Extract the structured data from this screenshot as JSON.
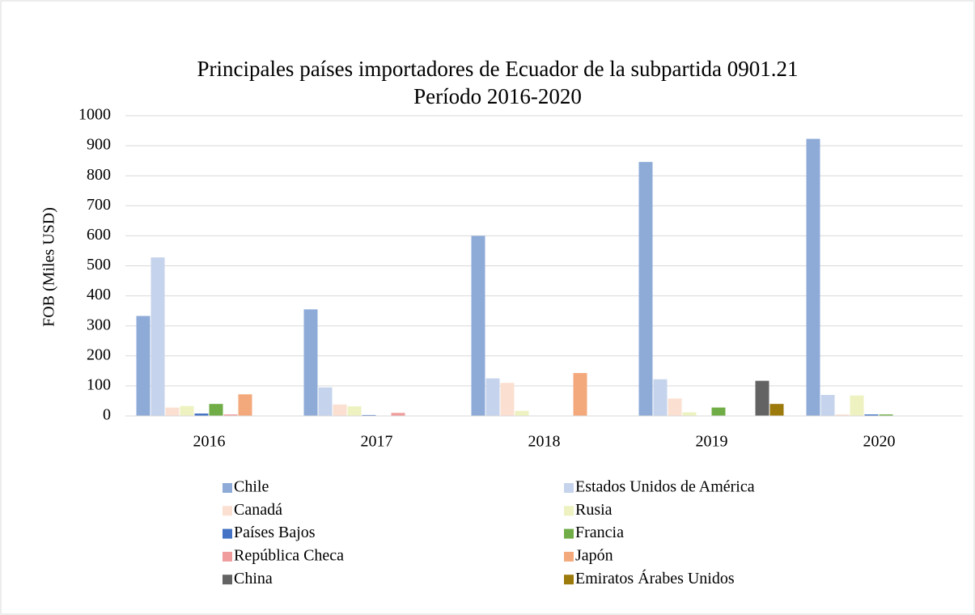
{
  "chart_data": {
    "type": "bar",
    "title": "Principales países importadores de Ecuador de la subpartida 0901.21",
    "subtitle": "Período 2016-2020",
    "y_label": "FOB (Miles USD)",
    "categories": [
      "2016",
      "2017",
      "2018",
      "2019",
      "2020"
    ],
    "series": [
      {
        "name": "Chile",
        "color": "#8eabd8",
        "values": [
          333,
          355,
          600,
          846,
          923
        ]
      },
      {
        "name": "Estados Unidos de América",
        "color": "#c5d3ec",
        "values": [
          528,
          95,
          125,
          122,
          70
        ]
      },
      {
        "name": "Canadá",
        "color": "#fbe0d2",
        "values": [
          28,
          38,
          110,
          58,
          5
        ]
      },
      {
        "name": "Rusia",
        "color": "#edf2c0",
        "values": [
          33,
          32,
          17,
          12,
          68
        ]
      },
      {
        "name": "Países Bajos",
        "color": "#4472c4",
        "values": [
          8,
          3,
          0,
          0,
          5
        ]
      },
      {
        "name": "Francia",
        "color": "#70ad47",
        "values": [
          40,
          0,
          0,
          28,
          5
        ]
      },
      {
        "name": "República Checa",
        "color": "#f19c9c",
        "values": [
          5,
          10,
          0,
          0,
          0
        ]
      },
      {
        "name": "Japón",
        "color": "#f4a97c",
        "values": [
          72,
          0,
          143,
          0,
          0
        ]
      },
      {
        "name": "China",
        "color": "#636363",
        "values": [
          0,
          0,
          0,
          117,
          0
        ]
      },
      {
        "name": "Emiratos Árabes Unidos",
        "color": "#9c7a0c",
        "values": [
          0,
          0,
          0,
          40,
          0
        ]
      }
    ],
    "ylim": [
      0,
      1000
    ],
    "yticks": [
      0,
      100,
      200,
      300,
      400,
      500,
      600,
      700,
      800,
      900,
      1000
    ],
    "grid": true,
    "legend": "bottom"
  }
}
